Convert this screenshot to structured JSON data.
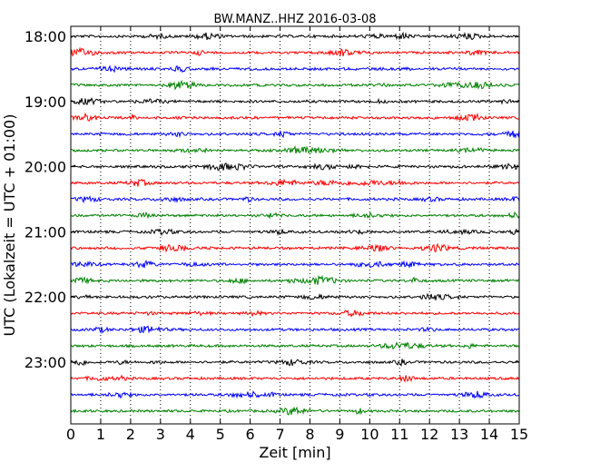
{
  "chart_data": {
    "type": "line",
    "title": "BW.MANZ..HHZ 2016-03-08",
    "xlabel": "Zeit  [min]",
    "ylabel": "UTC (Lokalzeit = UTC + 01:00)",
    "xlim": [
      0,
      15
    ],
    "x_ticks": [
      "0",
      "1",
      "2",
      "3",
      "4",
      "5",
      "6",
      "7",
      "8",
      "9",
      "10",
      "11",
      "12",
      "13",
      "14",
      "15"
    ],
    "y_tick_labels": [
      "18:00",
      "19:00",
      "20:00",
      "21:00",
      "22:00",
      "23:00"
    ],
    "y_tick_rows": [
      0,
      4,
      8,
      12,
      16,
      20
    ],
    "grid": "vertical-dotted",
    "colors": [
      "#000000",
      "#ff0000",
      "#0000ff",
      "#008000"
    ],
    "series": [
      {
        "start": "18:00",
        "color": "#000000"
      },
      {
        "start": "18:15",
        "color": "#ff0000"
      },
      {
        "start": "18:30",
        "color": "#0000ff"
      },
      {
        "start": "18:45",
        "color": "#008000"
      },
      {
        "start": "19:00",
        "color": "#000000"
      },
      {
        "start": "19:15",
        "color": "#ff0000"
      },
      {
        "start": "19:30",
        "color": "#0000ff"
      },
      {
        "start": "19:45",
        "color": "#008000"
      },
      {
        "start": "20:00",
        "color": "#000000"
      },
      {
        "start": "20:15",
        "color": "#ff0000"
      },
      {
        "start": "20:30",
        "color": "#0000ff"
      },
      {
        "start": "20:45",
        "color": "#008000"
      },
      {
        "start": "21:00",
        "color": "#000000"
      },
      {
        "start": "21:15",
        "color": "#ff0000"
      },
      {
        "start": "21:30",
        "color": "#0000ff"
      },
      {
        "start": "21:45",
        "color": "#008000"
      },
      {
        "start": "22:00",
        "color": "#000000"
      },
      {
        "start": "22:15",
        "color": "#ff0000"
      },
      {
        "start": "22:30",
        "color": "#0000ff"
      },
      {
        "start": "22:45",
        "color": "#008000"
      },
      {
        "start": "23:00",
        "color": "#000000"
      },
      {
        "start": "23:15",
        "color": "#ff0000"
      },
      {
        "start": "23:30",
        "color": "#0000ff"
      },
      {
        "start": "23:45",
        "color": "#008000"
      }
    ]
  }
}
